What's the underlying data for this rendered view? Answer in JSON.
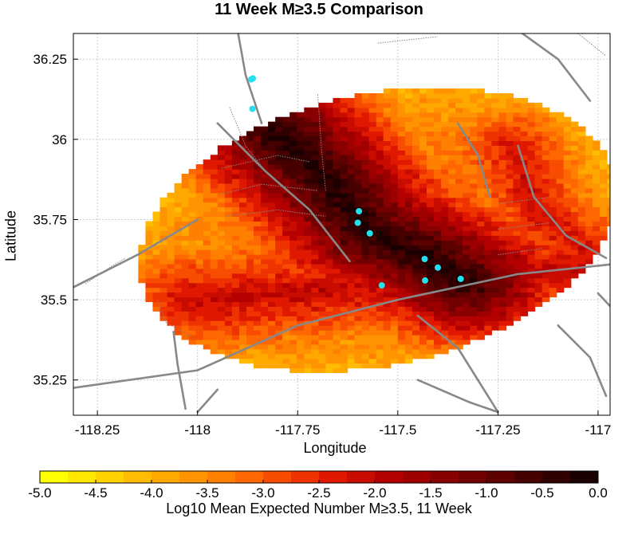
{
  "title": "11 Week M≥3.5 Comparison",
  "xlabel": "Longitude",
  "ylabel": "Latitude",
  "colorbar_label": "Log10 Mean Expected Number M≥3.5, 11 Week",
  "chart_data": {
    "type": "heatmap",
    "title": "11 Week M≥3.5 Comparison",
    "xlabel": "Longitude",
    "ylabel": "Latitude",
    "xlim": [
      -118.31,
      -116.97
    ],
    "ylim": [
      35.14,
      36.33
    ],
    "x_ticks": [
      -118.25,
      -118,
      -117.75,
      -117.5,
      -117.25,
      -117
    ],
    "x_tick_labels": [
      "-118.25",
      "-118",
      "-117.75",
      "-117.5",
      "-117.25",
      "-117"
    ],
    "y_ticks": [
      35.25,
      35.5,
      35.75,
      36,
      36.25
    ],
    "y_tick_labels": [
      "35.25",
      "35.5",
      "35.75",
      "36",
      "36.25"
    ],
    "grid": true,
    "colorbar": {
      "min": -5.0,
      "max": 0.0,
      "steps": 20,
      "ticks": [
        -5.0,
        -4.5,
        -4.0,
        -3.5,
        -3.0,
        -2.5,
        -2.0,
        -1.5,
        -1.0,
        -0.5,
        0.0
      ],
      "tick_labels": [
        "-5.0",
        "-4.5",
        "-4.0",
        "-3.5",
        "-3.0",
        "-2.5",
        "-2.0",
        "-1.5",
        "-1.0",
        "-0.5",
        "0.0"
      ],
      "colors": [
        "#ffff00",
        "#ffe800",
        "#ffd200",
        "#ffbc00",
        "#ffa800",
        "#ff9400",
        "#ff7f00",
        "#ff6800",
        "#f84d00",
        "#ee3200",
        "#e01800",
        "#c80c00",
        "#b40000",
        "#9e0000",
        "#880000",
        "#720000",
        "#5c0000",
        "#460000",
        "#300000",
        "#1a0000"
      ]
    },
    "earthquakes": [
      {
        "lon": -117.866,
        "lat": 36.187
      },
      {
        "lon": -117.862,
        "lat": 36.19
      },
      {
        "lon": -117.863,
        "lat": 36.095
      },
      {
        "lon": -117.597,
        "lat": 35.776
      },
      {
        "lon": -117.6,
        "lat": 35.74
      },
      {
        "lon": -117.57,
        "lat": 35.707
      },
      {
        "lon": -117.433,
        "lat": 35.627
      },
      {
        "lon": -117.4,
        "lat": 35.6
      },
      {
        "lon": -117.343,
        "lat": 35.565
      },
      {
        "lon": -117.432,
        "lat": 35.56
      },
      {
        "lon": -117.54,
        "lat": 35.545
      }
    ],
    "earthquake_color": "#22e0ee",
    "fault_color": "#888888"
  }
}
